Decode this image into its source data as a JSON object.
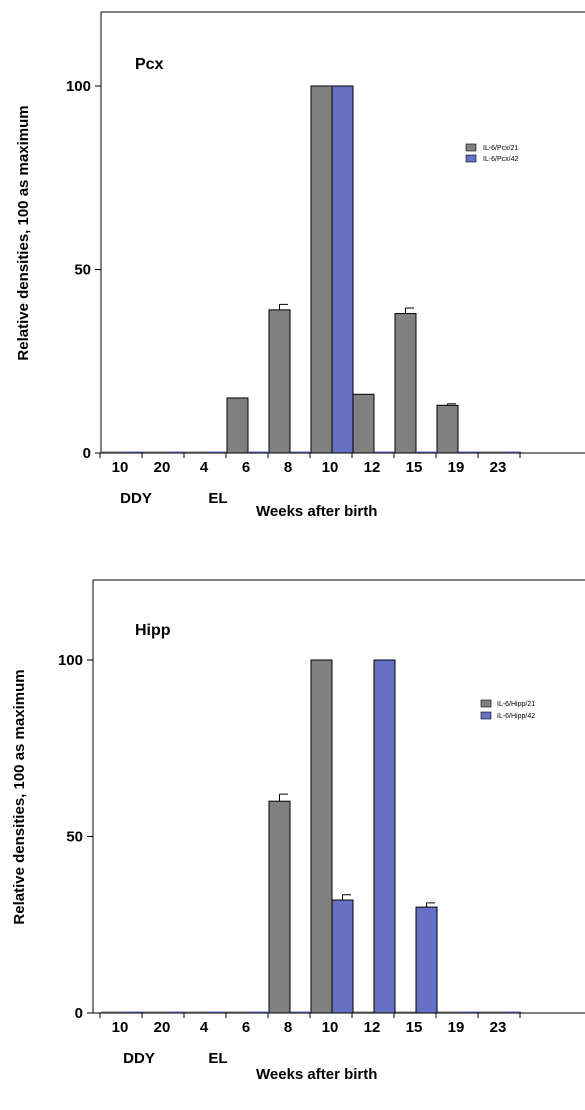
{
  "chart_data": [
    {
      "type": "bar",
      "title": "Pcx",
      "ylabel": "Relative densities, 100 as maximum",
      "xlabel": "Weeks after birth",
      "categories": [
        "10",
        "20",
        "4",
        "6",
        "8",
        "10",
        "12",
        "15",
        "19",
        "23"
      ],
      "group_labels": [
        "DDY",
        "EL"
      ],
      "ylim": [
        0,
        120
      ],
      "yticks": [
        "0",
        "50",
        "100"
      ],
      "legend_position": "right",
      "series": [
        {
          "name": "IL-6/Pcx/21",
          "color": "#808080",
          "values": [
            0,
            0,
            0,
            15,
            39,
            100,
            16,
            38,
            13,
            0
          ],
          "errors": [
            0,
            0,
            0,
            0,
            1.5,
            0,
            0,
            1.5,
            0.4,
            0
          ]
        },
        {
          "name": "IL-6/Pcx/42",
          "color": "#6670c4",
          "values": [
            0,
            0,
            0,
            0,
            0,
            100,
            0,
            0,
            0,
            0
          ],
          "errors": [
            0,
            0,
            0,
            0,
            0,
            0,
            0,
            0,
            0,
            0
          ]
        }
      ]
    },
    {
      "type": "bar",
      "title": "Hipp",
      "ylabel": "Relative densities, 100 as maximum",
      "xlabel": "Weeks after birth",
      "categories": [
        "10",
        "20",
        "4",
        "6",
        "8",
        "10",
        "12",
        "15",
        "19",
        "23"
      ],
      "group_labels": [
        "DDY",
        "EL"
      ],
      "ylim": [
        0,
        120
      ],
      "yticks": [
        "0",
        "50",
        "100"
      ],
      "legend_position": "right",
      "series": [
        {
          "name": "IL-6/Hipp/21",
          "color": "#808080",
          "values": [
            0,
            0,
            0,
            0,
            60,
            100,
            0,
            0,
            0,
            0
          ],
          "errors": [
            0,
            0,
            0,
            0,
            2,
            0,
            0,
            0,
            0,
            0
          ]
        },
        {
          "name": "IL-6/Hipp/42",
          "color": "#6670c4",
          "values": [
            0,
            0,
            0,
            0,
            0,
            32,
            100,
            30,
            0,
            0
          ],
          "errors": [
            0,
            0,
            0,
            0,
            0,
            1.5,
            0,
            1.2,
            0,
            0
          ]
        }
      ]
    }
  ]
}
